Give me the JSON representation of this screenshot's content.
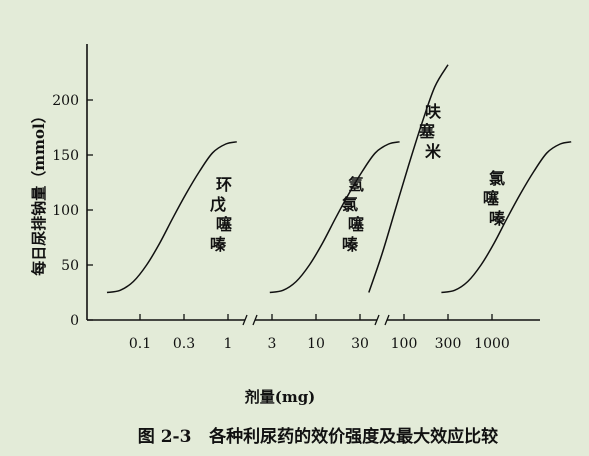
{
  "chart_data": {
    "type": "line",
    "title": "",
    "xlabel": "剂量(mg)",
    "ylabel": "每日尿排钠量（mmol）",
    "x_ticks": [
      {
        "pos": 0,
        "label": "0.1"
      },
      {
        "pos": 1,
        "label": "0.3"
      },
      {
        "pos": 2,
        "label": "1"
      },
      {
        "pos": 3,
        "label": "3"
      },
      {
        "pos": 4,
        "label": "10"
      },
      {
        "pos": 5,
        "label": "30"
      },
      {
        "pos": 6,
        "label": "100"
      },
      {
        "pos": 7,
        "label": "300"
      },
      {
        "pos": 8,
        "label": "1000"
      }
    ],
    "x_breaks_after": [
      2,
      5
    ],
    "xlim": [
      -1,
      9.1
    ],
    "y_ticks": [
      0,
      50,
      100,
      150,
      200
    ],
    "ylim": [
      0,
      250
    ],
    "series": [
      {
        "name": "环戊噻嗪",
        "label_chars": [
          "环",
          "戊",
          "噻",
          "嗪"
        ],
        "x": [
          -0.75,
          -0.45,
          -0.15,
          0.15,
          0.45,
          0.75,
          1.05,
          1.35,
          1.65,
          1.95,
          2.2
        ],
        "y": [
          25,
          27,
          35,
          50,
          70,
          93,
          115,
          135,
          152,
          160,
          162
        ]
      },
      {
        "name": "氢氯噻嗪",
        "label_chars": [
          "氢",
          "氯",
          "噻",
          "嗪"
        ],
        "x": [
          2.95,
          3.25,
          3.55,
          3.85,
          4.15,
          4.45,
          4.75,
          5.05,
          5.35,
          5.65,
          5.9
        ],
        "y": [
          25,
          27,
          35,
          50,
          70,
          93,
          115,
          135,
          152,
          160,
          162
        ]
      },
      {
        "name": "呋塞米",
        "label_chars": [
          "呋",
          "塞",
          "米"
        ],
        "x": [
          5.2,
          5.5,
          5.8,
          6.1,
          6.4,
          6.7,
          7.0
        ],
        "y": [
          25,
          60,
          100,
          140,
          178,
          212,
          232
        ]
      },
      {
        "name": "氯噻嗪",
        "label_chars": [
          "氯",
          "噻",
          "嗪"
        ],
        "x": [
          6.85,
          7.15,
          7.45,
          7.75,
          8.05,
          8.35,
          8.65,
          8.95,
          9.25,
          9.55,
          9.8
        ],
        "y": [
          25,
          27,
          35,
          50,
          70,
          93,
          115,
          135,
          152,
          160,
          162
        ]
      }
    ],
    "grid": false,
    "legend": "none"
  },
  "caption": "图 2-3   各种利尿药的效价强度及最大效应比较"
}
